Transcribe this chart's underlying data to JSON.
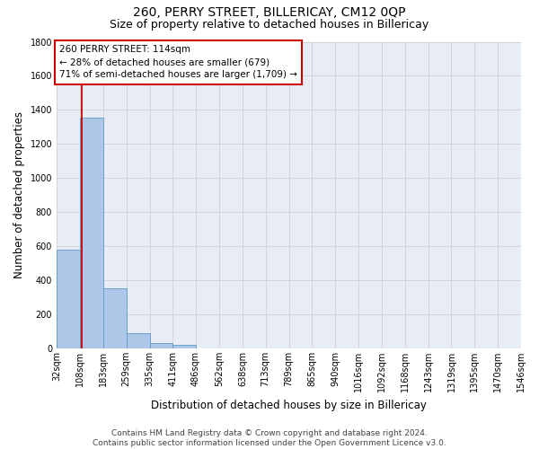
{
  "title": "260, PERRY STREET, BILLERICAY, CM12 0QP",
  "subtitle": "Size of property relative to detached houses in Billericay",
  "xlabel": "Distribution of detached houses by size in Billericay",
  "ylabel": "Number of detached properties",
  "footer_line1": "Contains HM Land Registry data © Crown copyright and database right 2024.",
  "footer_line2": "Contains public sector information licensed under the Open Government Licence v3.0.",
  "bins": [
    32,
    108,
    183,
    259,
    335,
    411,
    486,
    562,
    638,
    713,
    789,
    865,
    940,
    1016,
    1092,
    1168,
    1243,
    1319,
    1395,
    1470,
    1546
  ],
  "counts": [
    580,
    1355,
    355,
    90,
    30,
    22,
    0,
    0,
    0,
    0,
    0,
    0,
    0,
    0,
    0,
    0,
    0,
    0,
    0,
    0
  ],
  "bar_color": "#aec6e8",
  "bar_edge_color": "#5a9ac5",
  "property_size": 114,
  "annotation_text": "260 PERRY STREET: 114sqm\n← 28% of detached houses are smaller (679)\n71% of semi-detached houses are larger (1,709) →",
  "annotation_box_color": "#ffffff",
  "annotation_box_edge_color": "#cc0000",
  "vline_color": "#cc0000",
  "ylim": [
    0,
    1800
  ],
  "yticks": [
    0,
    200,
    400,
    600,
    800,
    1000,
    1200,
    1400,
    1600,
    1800
  ],
  "grid_color": "#d0d0d0",
  "bg_color": "#e8edf5",
  "title_fontsize": 10,
  "subtitle_fontsize": 9,
  "axis_label_fontsize": 8.5,
  "tick_fontsize": 7,
  "annotation_fontsize": 7.5,
  "footer_fontsize": 6.5
}
